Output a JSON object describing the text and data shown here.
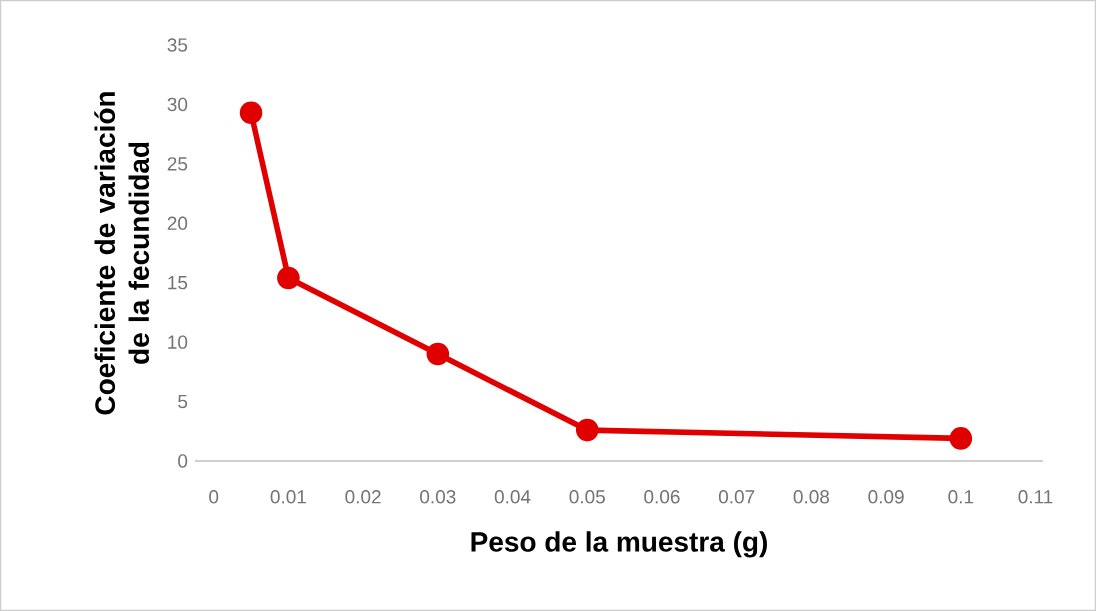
{
  "chart_data": {
    "type": "line",
    "xlabel": "Peso de la muestra  (g)",
    "ylabel": "Coeficiente de variación de la fecundidad",
    "x": [
      0.005,
      0.01,
      0.03,
      0.05,
      0.1
    ],
    "series": [
      {
        "color": "#e00000",
        "values": [
          29.3,
          15.4,
          9,
          2.6,
          1.9
        ]
      }
    ],
    "xlim": [
      -0.0025,
      0.111
    ],
    "xticks": [
      0,
      0.01,
      0.02,
      0.03,
      0.04,
      0.05,
      0.06,
      0.07,
      0.08,
      0.09,
      0.1,
      0.11
    ],
    "ylim": [
      0,
      35
    ],
    "yticks": [
      0,
      5,
      10,
      15,
      20,
      25,
      30,
      35
    ],
    "marker": "circle",
    "line_style": "solid",
    "grid": false
  }
}
